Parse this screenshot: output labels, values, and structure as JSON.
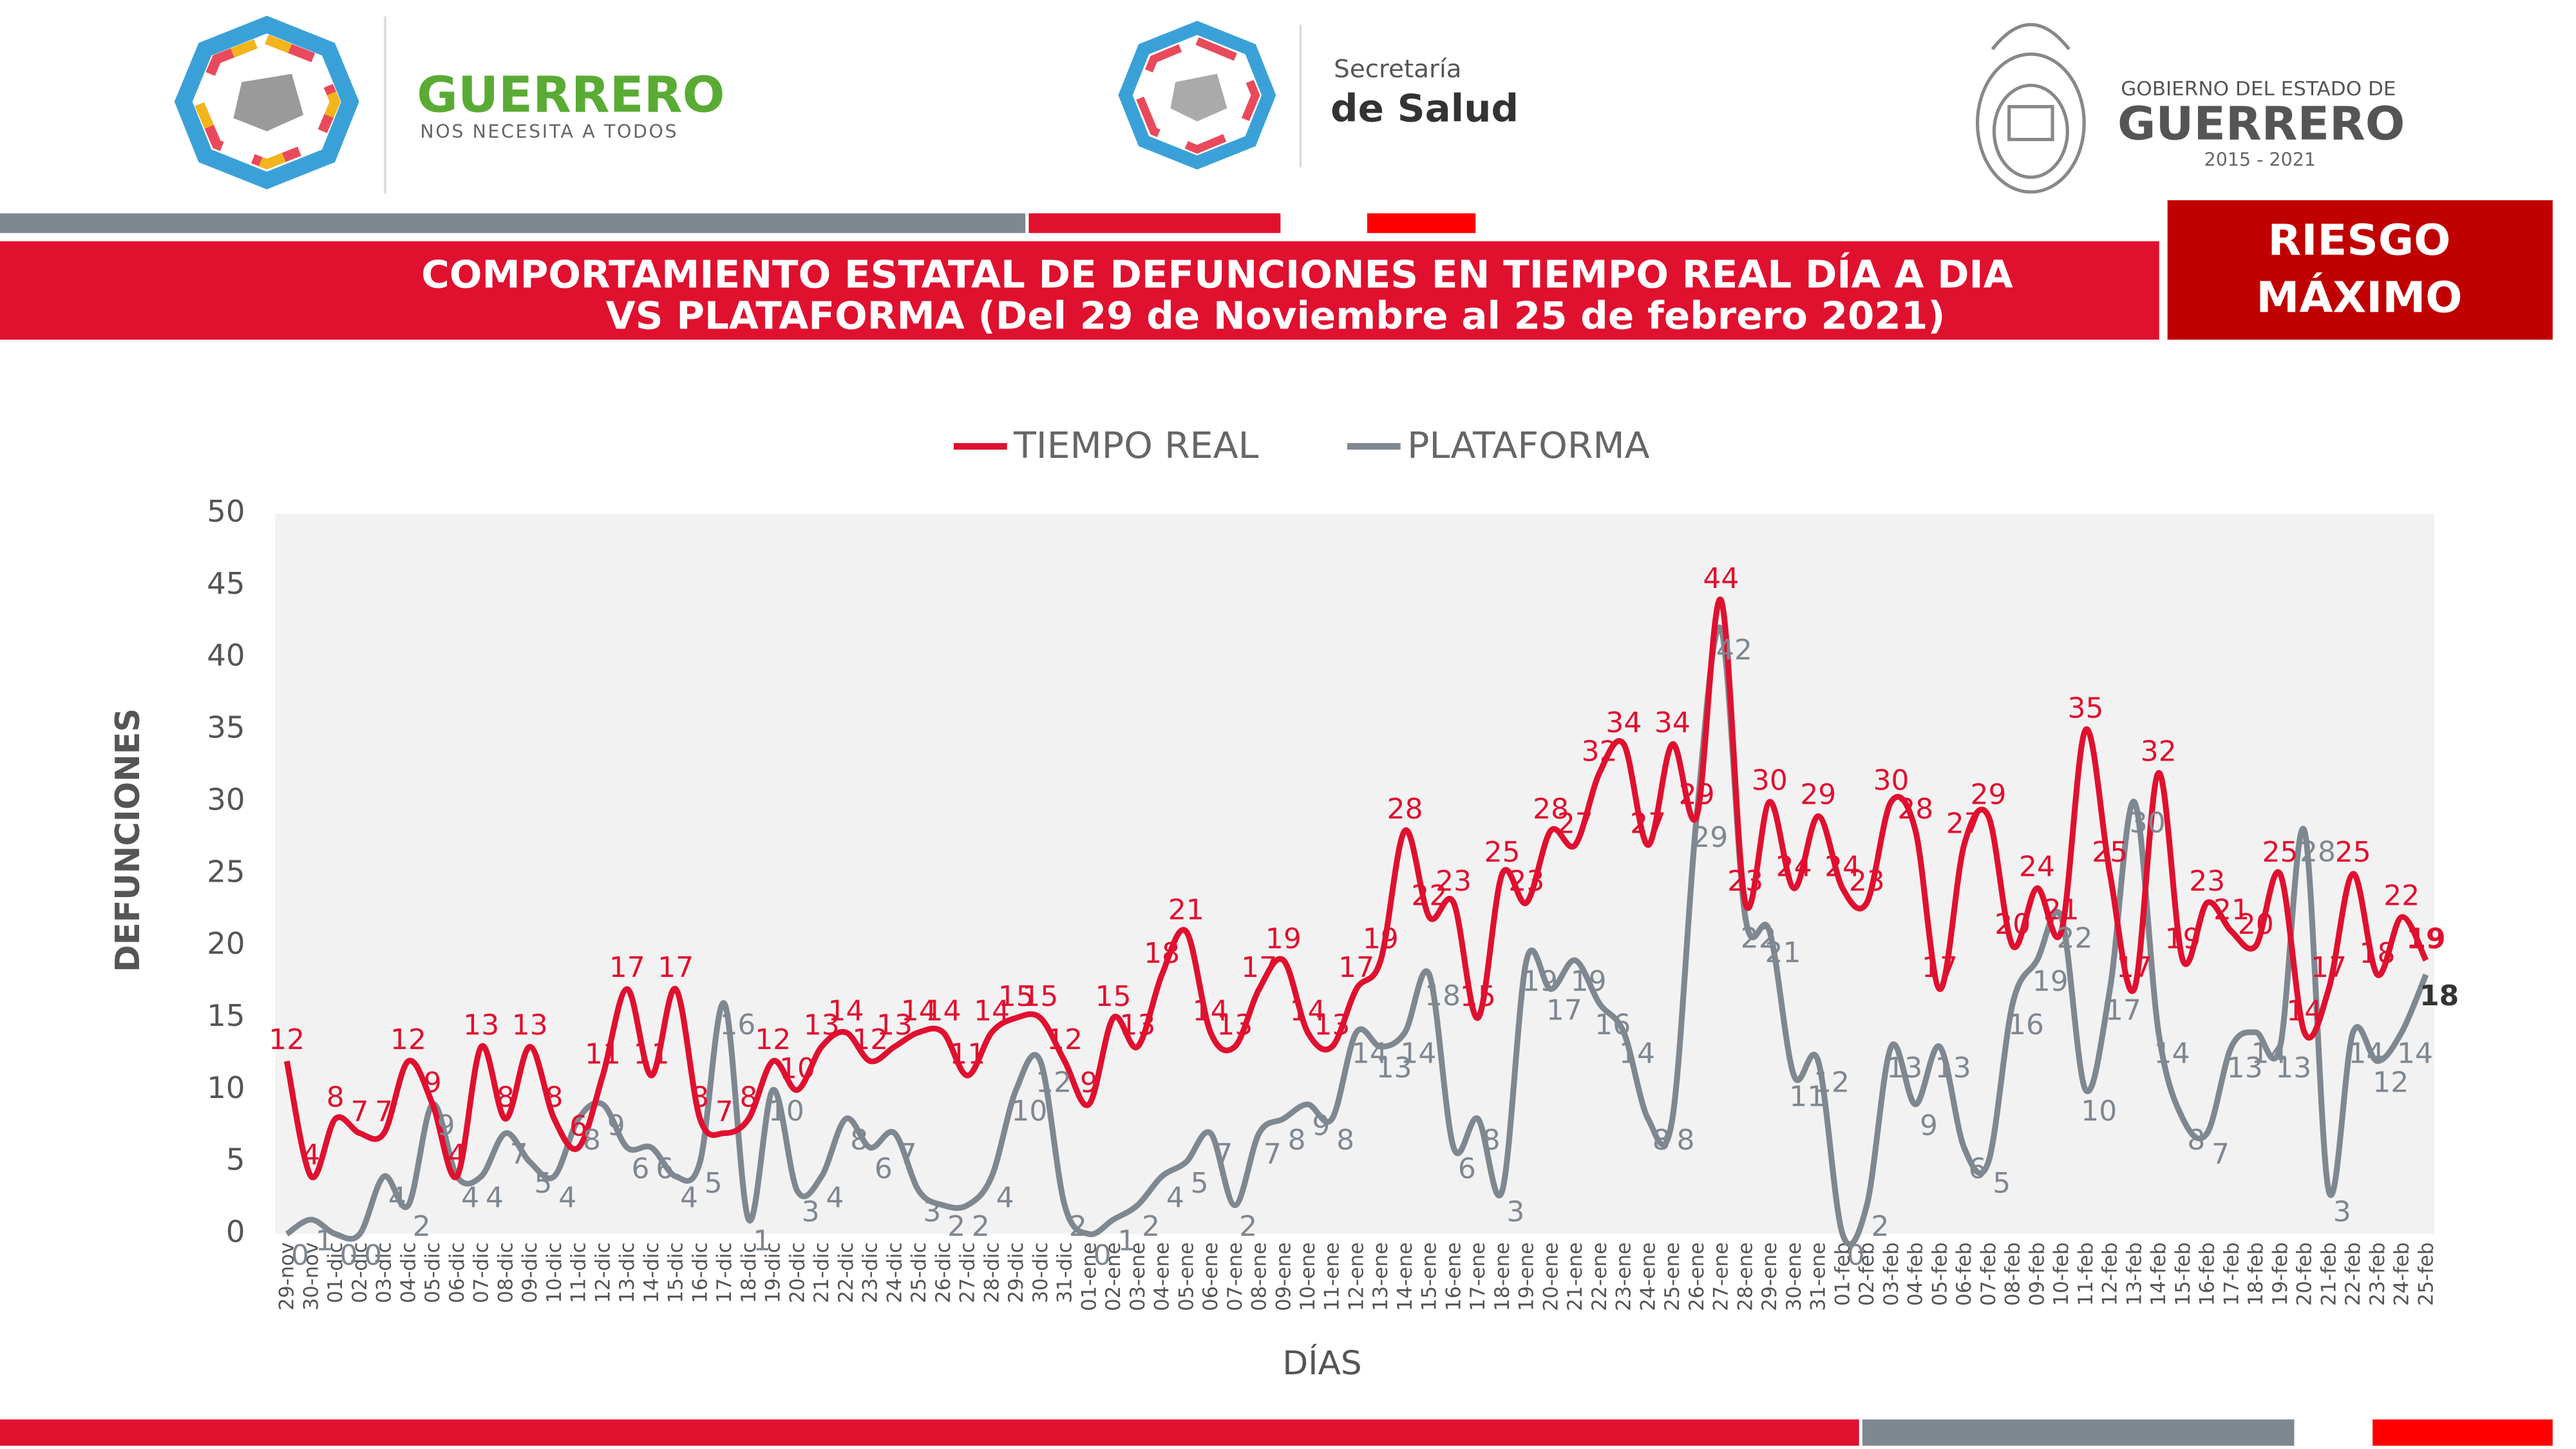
{
  "header": {
    "left_title": "GUERRERO",
    "left_sub": "NOS NECESITA A TODOS",
    "mid_1": "Secretaría",
    "mid_2": "de Salud",
    "right_1": "GOBIERNO DEL ESTADO DE",
    "right_2": "GUERRERO",
    "right_3": "2015 - 2021"
  },
  "badge": [
    "RIESGO",
    "MÁXIMO"
  ],
  "chart_data": {
    "type": "line",
    "title": [
      "COMPORTAMIENTO ESTATAL DE DEFUNCIONES EN TIEMPO REAL DÍA A DIA",
      "VS PLATAFORMA   (Del 29 de Noviembre al 25 de febrero 2021)"
    ],
    "x_label": "DÍAS",
    "y_label": "DEFUNCIONES",
    "categories": [
      "29-nov",
      "30-nov",
      "01-dic",
      "02-dic",
      "03-dic",
      "04-dic",
      "05-dic",
      "06-dic",
      "07-dic",
      "08-dic",
      "09-dic",
      "10-dic",
      "11-dic",
      "12-dic",
      "13-dic",
      "14-dic",
      "15-dic",
      "16-dic",
      "17-dic",
      "18-dic",
      "19-dic",
      "20-dic",
      "21-dic",
      "22-dic",
      "23-dic",
      "24-dic",
      "25-dic",
      "26-dic",
      "27-dic",
      "28-dic",
      "29-dic",
      "30-dic",
      "31-dic",
      "01-ene",
      "02-ene",
      "03-ene",
      "04-ene",
      "05-ene",
      "06-ene",
      "07-ene",
      "08-ene",
      "09-ene",
      "10-ene",
      "11-ene",
      "12-ene",
      "13-ene",
      "14-ene",
      "15-ene",
      "16-ene",
      "17-ene",
      "18-ene",
      "19-ene",
      "20-ene",
      "21-ene",
      "22-ene",
      "23-ene",
      "24-ene",
      "25-ene",
      "26-ene",
      "27-ene",
      "28-ene",
      "29-ene",
      "30-ene",
      "31-ene",
      "01-feb",
      "02-feb",
      "03-feb",
      "04-feb",
      "05-feb",
      "06-feb",
      "07-feb",
      "08-feb",
      "09-feb",
      "10-feb",
      "11-feb",
      "12-feb",
      "13-feb",
      "14-feb",
      "15-feb",
      "16-feb",
      "17-feb",
      "18-feb",
      "19-feb",
      "20-feb",
      "21-feb",
      "22-feb",
      "23-feb",
      "24-feb",
      "25-feb"
    ],
    "series": [
      {
        "name": "TIEMPO REAL",
        "color": "#e0102f",
        "values": [
          12,
          4,
          8,
          7,
          7,
          12,
          9,
          4,
          13,
          8,
          13,
          8,
          6,
          11,
          17,
          11,
          17,
          8,
          7,
          8,
          12,
          10,
          13,
          14,
          12,
          13,
          14,
          14,
          11,
          14,
          15,
          15,
          12,
          9,
          15,
          13,
          18,
          21,
          14,
          13,
          17,
          19,
          14,
          13,
          17,
          19,
          28,
          22,
          23,
          15,
          25,
          23,
          28,
          27,
          32,
          34,
          27,
          34,
          29,
          44,
          23,
          30,
          24,
          29,
          24,
          23,
          30,
          28,
          17,
          27,
          29,
          20,
          24,
          21,
          35,
          25,
          17,
          32,
          19,
          23,
          21,
          20,
          25,
          14,
          17,
          25,
          18,
          22,
          19
        ]
      },
      {
        "name": "PLATAFORMA",
        "color": "#7f8790",
        "values": [
          0,
          1,
          0,
          0,
          4,
          2,
          9,
          4,
          4,
          7,
          5,
          4,
          8,
          9,
          6,
          6,
          4,
          5,
          16,
          1,
          10,
          3,
          4,
          8,
          6,
          7,
          3,
          2,
          2,
          4,
          10,
          12,
          2,
          0,
          1,
          2,
          4,
          5,
          7,
          2,
          7,
          8,
          9,
          8,
          14,
          13,
          14,
          18,
          6,
          8,
          3,
          19,
          17,
          19,
          16,
          14,
          8,
          8,
          29,
          42,
          22,
          21,
          11,
          12,
          0,
          2,
          13,
          9,
          13,
          6,
          5,
          16,
          19,
          22,
          10,
          17,
          30,
          14,
          8,
          7,
          13,
          14,
          13,
          28,
          3,
          14,
          12,
          14,
          18
        ]
      }
    ],
    "ylim": [
      0,
      50
    ],
    "yticks": [
      0,
      5,
      10,
      15,
      20,
      25,
      30,
      35,
      40,
      45,
      50
    ],
    "legend": "top"
  }
}
